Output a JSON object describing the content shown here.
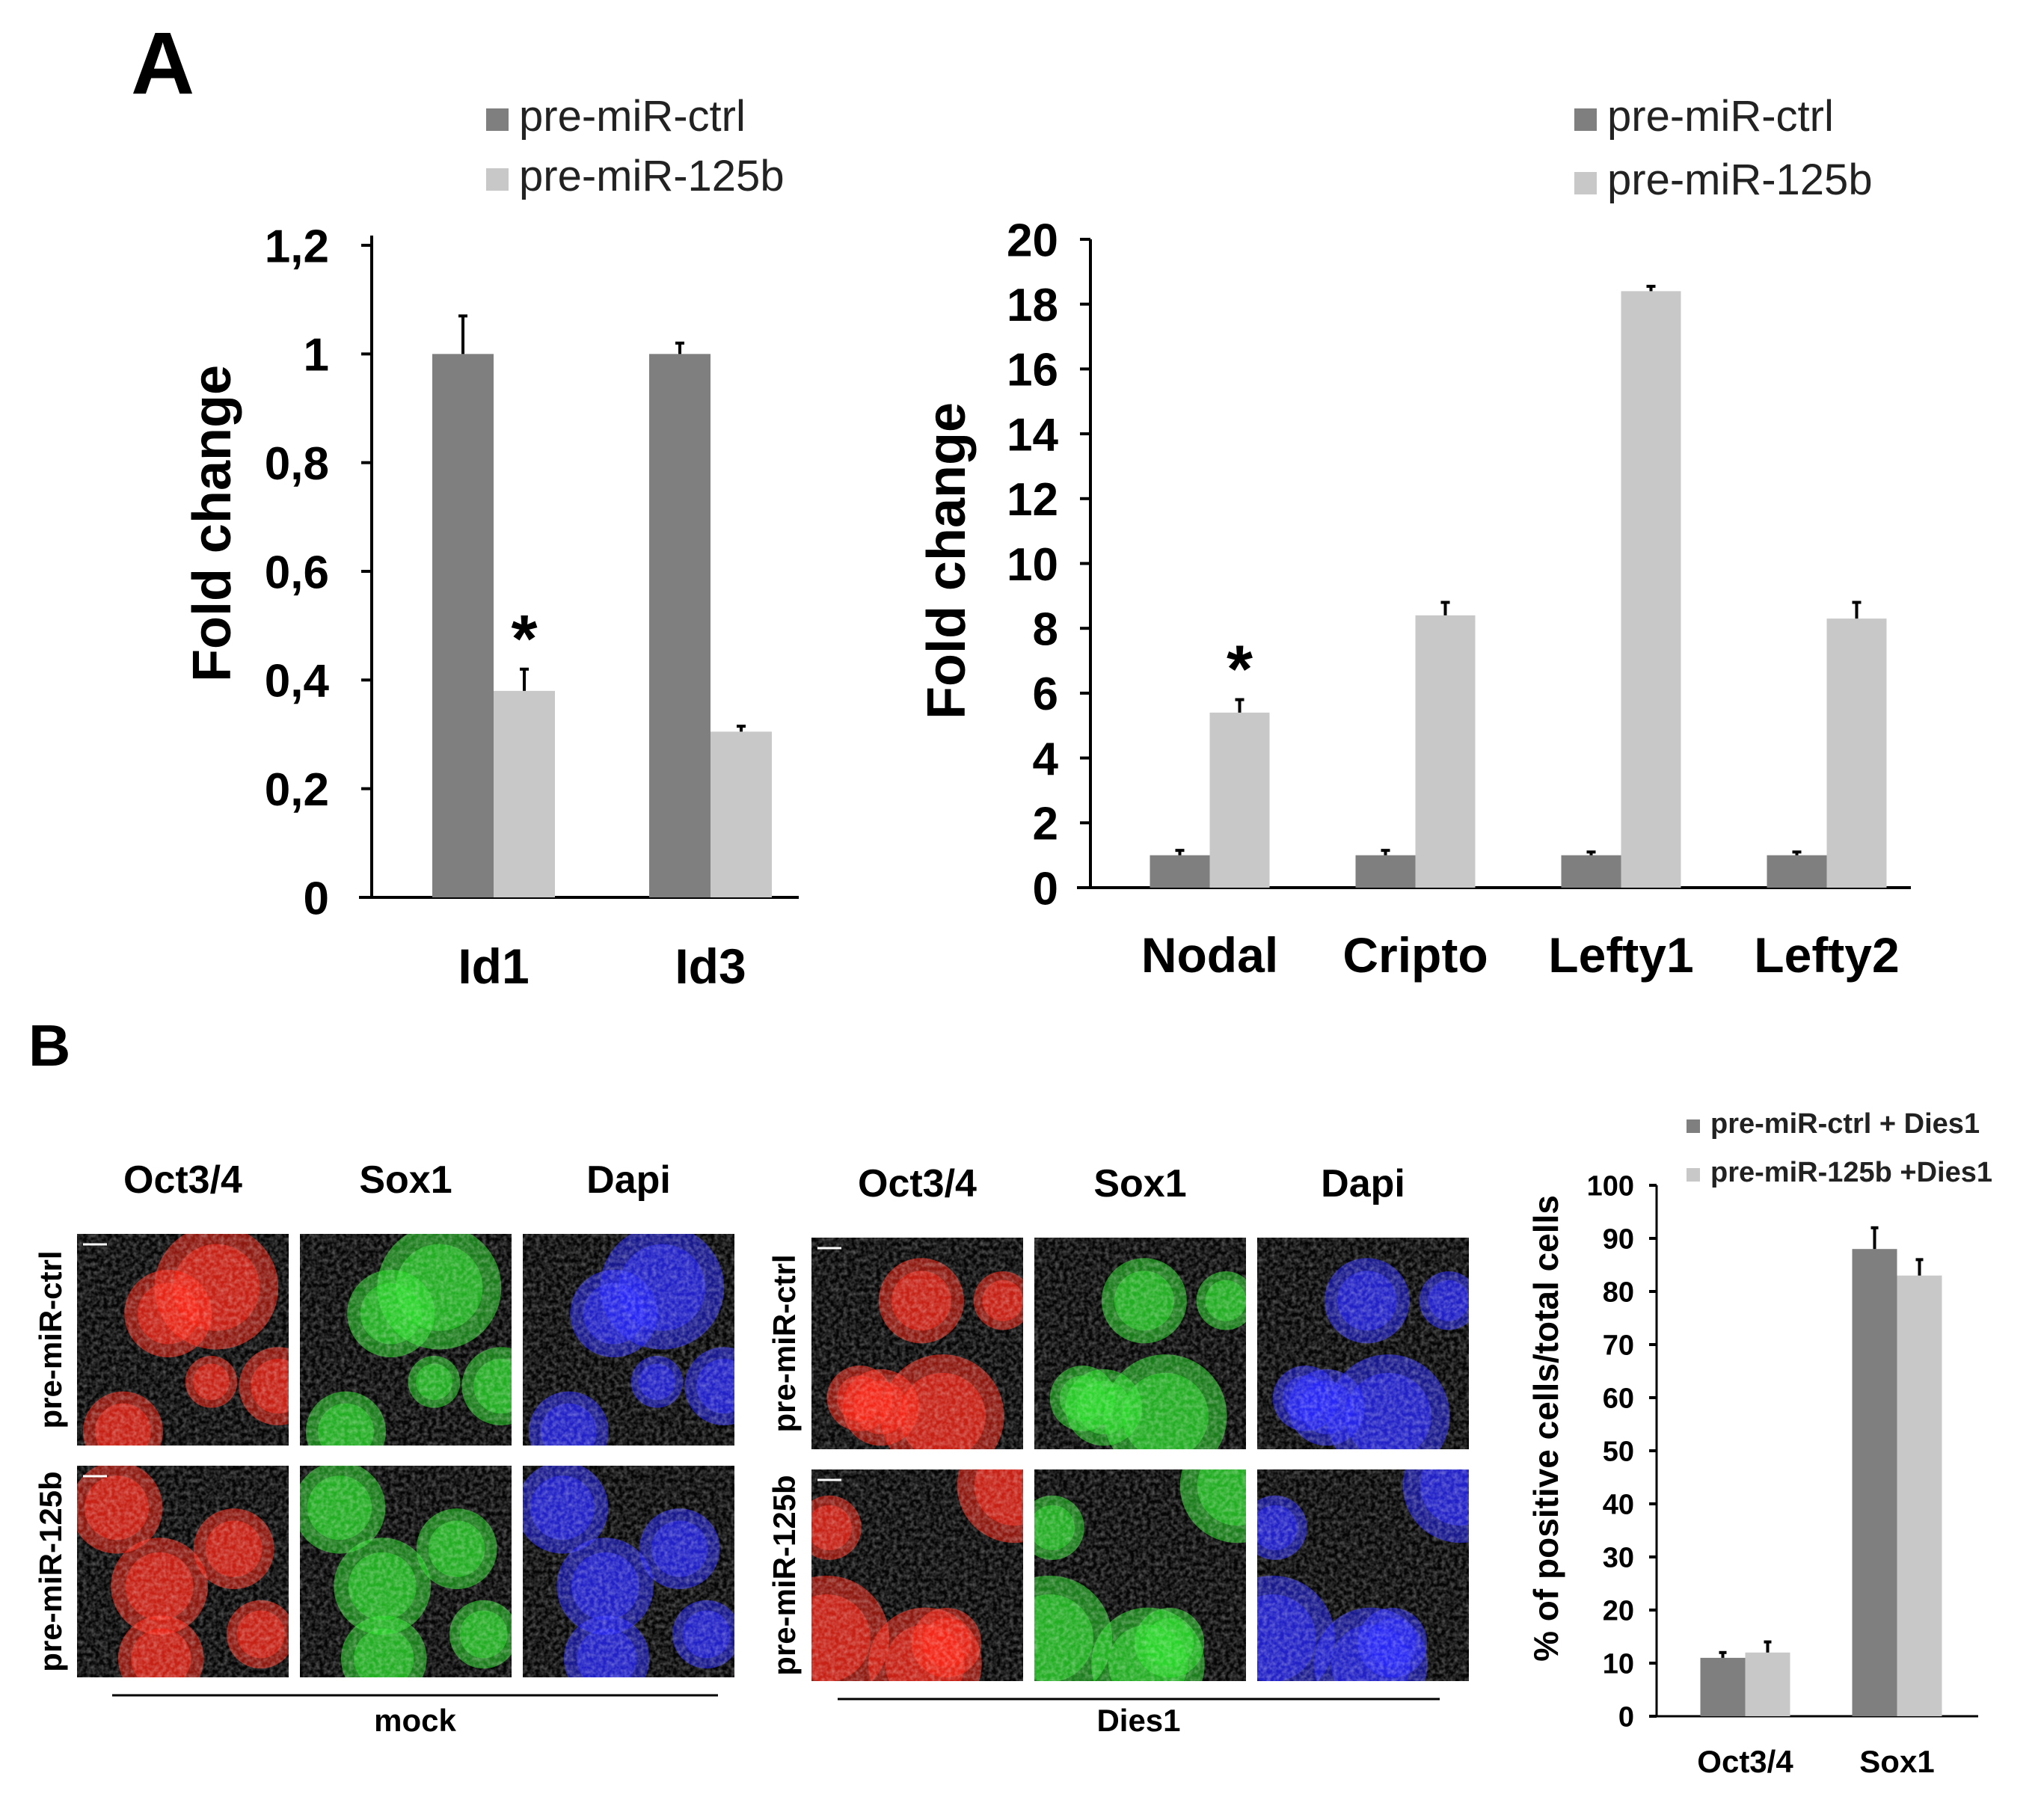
{
  "panels": {
    "a": "A",
    "b": "B"
  },
  "chart_data": [
    {
      "type": "bar",
      "categories": [
        "Id1",
        "Id3"
      ],
      "series": [
        {
          "name": "pre-miR-ctrl",
          "color": "#7f7f7f",
          "values": [
            1.0,
            1.0
          ],
          "errors": [
            0.07,
            0.02
          ]
        },
        {
          "name": "pre-miR-125b",
          "color": "#c8c8c8",
          "values": [
            0.38,
            0.305
          ],
          "errors": [
            0.04,
            0.01
          ]
        }
      ],
      "ylabel": "Fold change",
      "yticks": [
        "0",
        "0,2",
        "0,4",
        "0,6",
        "0,8",
        "1",
        "1,2"
      ],
      "ylim": [
        0,
        1.2
      ],
      "annotations": [
        {
          "category": "Id1",
          "series": 1,
          "text": "*"
        }
      ],
      "legend": "top"
    },
    {
      "type": "bar",
      "categories": [
        "Nodal",
        "Cripto",
        "Lefty1",
        "Lefty2"
      ],
      "series": [
        {
          "name": "pre-miR-ctrl",
          "color": "#7f7f7f",
          "values": [
            1.0,
            1.0,
            1.0,
            1.0
          ],
          "errors": [
            0.15,
            0.15,
            0.1,
            0.1
          ]
        },
        {
          "name": "pre-miR-125b",
          "color": "#c8c8c8",
          "values": [
            5.4,
            8.4,
            18.4,
            8.3
          ],
          "errors": [
            0.4,
            0.4,
            0.15,
            0.5
          ]
        }
      ],
      "ylabel": "Fold change",
      "yticks": [
        "0",
        "2",
        "4",
        "6",
        "8",
        "10",
        "12",
        "14",
        "16",
        "18",
        "20"
      ],
      "ylim": [
        0,
        20
      ],
      "annotations": [
        {
          "category": "Nodal",
          "series": 1,
          "text": "*"
        }
      ],
      "legend": "top"
    },
    {
      "type": "bar",
      "categories": [
        "Oct3/4",
        "Sox1"
      ],
      "series": [
        {
          "name": "pre-miR-ctrl + Dies1",
          "color": "#7f7f7f",
          "values": [
            11,
            88
          ],
          "errors": [
            1,
            4
          ]
        },
        {
          "name": "pre-miR-125b +Dies1",
          "color": "#c8c8c8",
          "values": [
            12,
            83
          ],
          "errors": [
            2,
            3
          ]
        }
      ],
      "ylabel": "% of positive cells/total cells",
      "yticks": [
        "0",
        "10",
        "20",
        "30",
        "40",
        "50",
        "60",
        "70",
        "80",
        "90",
        "100"
      ],
      "ylim": [
        0,
        100
      ],
      "legend": "top-right"
    }
  ],
  "micrographs": [
    {
      "condition": "mock",
      "columns": [
        "Oct3/4",
        "Sox1",
        "Dapi"
      ],
      "rows": [
        "pre-miR-ctrl",
        "pre-miR-125b"
      ]
    },
    {
      "condition": "Dies1",
      "columns": [
        "Oct3/4",
        "Sox1",
        "Dapi"
      ],
      "rows": [
        "pre-miR-ctrl",
        "pre-miR-125b"
      ]
    }
  ],
  "channel_colors": {
    "Oct3/4": "#ff2a1a",
    "Sox1": "#2ee02e",
    "Dapi": "#2a2aff"
  }
}
